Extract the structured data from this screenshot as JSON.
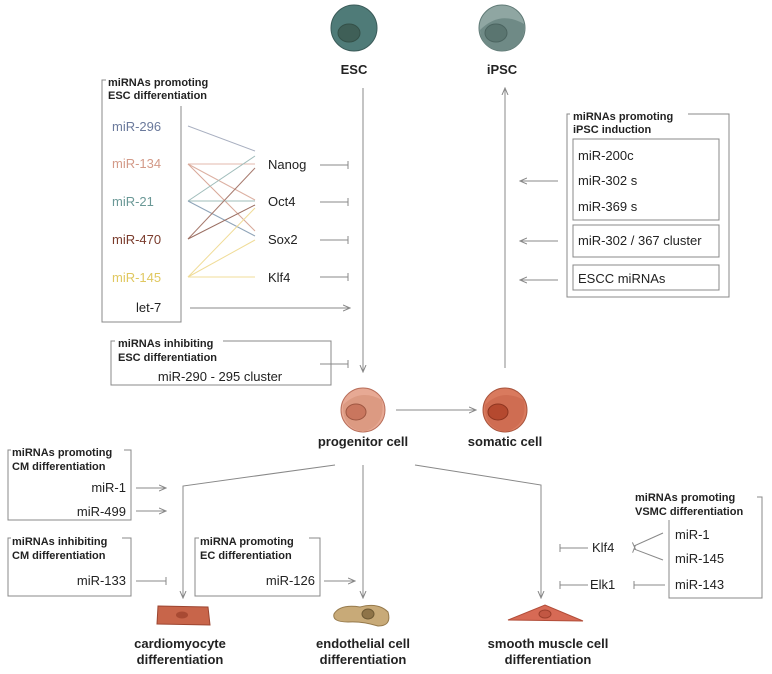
{
  "cells": {
    "esc": "ESC",
    "ipsc": "iPSC",
    "progenitor": "progenitor cell",
    "somatic": "somatic cell",
    "cardiomyocyte": [
      "cardiomyocyte",
      "differentiation"
    ],
    "endothelial": [
      "endothelial cell",
      "differentiation"
    ],
    "smooth_muscle": [
      "smooth muscle cell",
      "differentiation"
    ]
  },
  "esc_promoting": {
    "title": [
      "miRNAs promoting",
      "ESC differentiation"
    ],
    "mirnas": [
      {
        "label": "miR-296",
        "color": "#6b7a9c"
      },
      {
        "label": "miR-134",
        "color": "#d39a88"
      },
      {
        "label": "miR-21",
        "color": "#6a9896"
      },
      {
        "label": "miR-470",
        "color": "#7a3b2c"
      },
      {
        "label": "miR-145",
        "color": "#e9d273"
      }
    ],
    "let7": "let-7",
    "targets": [
      "Nanog",
      "Oct4",
      "Sox2",
      "Klf4"
    ]
  },
  "esc_inhibiting": {
    "title": [
      "miRNAs inhibiting",
      "ESC differentiation"
    ],
    "item": "miR-290 - 295 cluster"
  },
  "ipsc_promoting": {
    "title": [
      "miRNAs promoting",
      "iPSC induction"
    ],
    "group1": [
      "miR-200c",
      "miR-302 s",
      "miR-369 s"
    ],
    "group2": "miR-302 / 367 cluster",
    "group3": "ESCC miRNAs"
  },
  "cm_promoting": {
    "title": [
      "miRNAs promoting",
      "CM differentiation"
    ],
    "items": [
      "miR-1",
      "miR-499"
    ]
  },
  "cm_inhibiting": {
    "title": [
      "miRNAs inhibiting",
      "CM differentiation"
    ],
    "item": "miR-133"
  },
  "ec_promoting": {
    "title": [
      "miRNA promoting",
      "EC differentiation"
    ],
    "item": "miR-126"
  },
  "vsmc_promoting": {
    "title": [
      "miRNAs promoting",
      "VSMC differentiation"
    ],
    "items": [
      "miR-1",
      "miR-145",
      "miR-143"
    ],
    "targets": [
      "Klf4",
      "Elk1"
    ]
  }
}
